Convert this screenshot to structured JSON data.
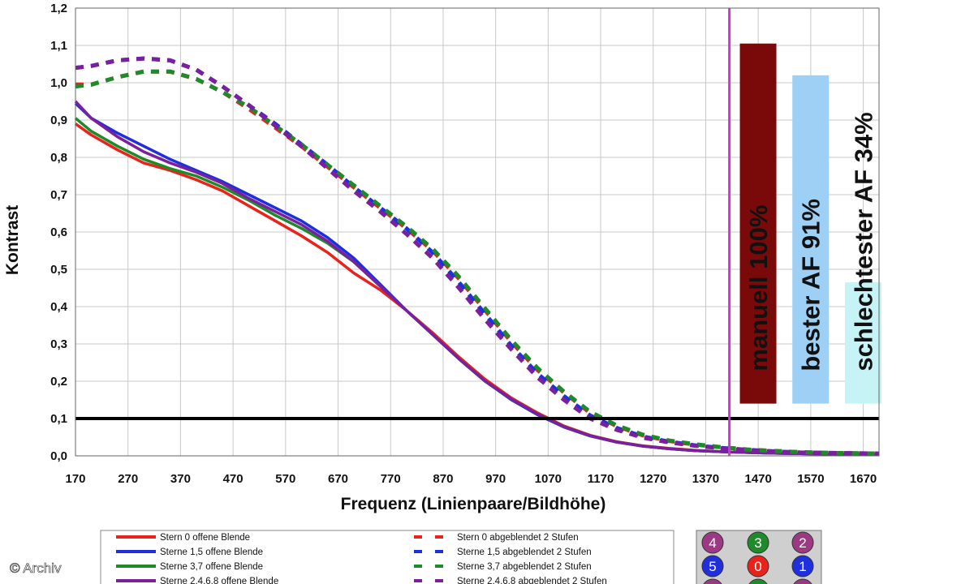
{
  "chart_data": {
    "type": "line",
    "xlabel": "Frequenz (Linienpaare/Bildhöhe)",
    "ylabel": "Kontrast",
    "xlim": [
      170,
      1700
    ],
    "ylim": [
      0,
      1.2
    ],
    "x_ticks": [
      "170",
      "270",
      "370",
      "470",
      "570",
      "670",
      "770",
      "870",
      "970",
      "1070",
      "1170",
      "1270",
      "1370",
      "1470",
      "1570",
      "1670"
    ],
    "y_ticks": [
      "0,0",
      "0,1",
      "0,2",
      "0,3",
      "0,4",
      "0,5",
      "0,6",
      "0,7",
      "0,8",
      "0,9",
      "1,0",
      "1,1",
      "1,2"
    ],
    "grid": true,
    "x": [
      170,
      200,
      250,
      300,
      350,
      400,
      450,
      500,
      550,
      600,
      650,
      700,
      750,
      800,
      850,
      900,
      950,
      1000,
      1050,
      1100,
      1150,
      1200,
      1250,
      1300,
      1350,
      1400,
      1450,
      1500,
      1550,
      1600,
      1650,
      1700
    ],
    "series": [
      {
        "name": "Stern 0 offene Blende",
        "color": "#e8231c",
        "dash": false,
        "values": [
          0.89,
          0.86,
          0.82,
          0.785,
          0.765,
          0.74,
          0.71,
          0.67,
          0.63,
          0.59,
          0.545,
          0.49,
          0.445,
          0.39,
          0.33,
          0.265,
          0.205,
          0.155,
          0.115,
          0.08,
          0.055,
          0.038,
          0.027,
          0.02,
          0.015,
          0.011,
          0.009,
          0.007,
          0.006,
          0.005,
          0.004,
          0.004
        ]
      },
      {
        "name": "Sterne 1,5 offene Blende",
        "color": "#1f2fdc",
        "dash": false,
        "values": [
          0.945,
          0.905,
          0.865,
          0.83,
          0.795,
          0.765,
          0.735,
          0.7,
          0.665,
          0.63,
          0.585,
          0.53,
          0.46,
          0.39,
          0.325,
          0.26,
          0.2,
          0.15,
          0.11,
          0.077,
          0.053,
          0.037,
          0.026,
          0.019,
          0.014,
          0.011,
          0.009,
          0.007,
          0.006,
          0.005,
          0.004,
          0.004
        ]
      },
      {
        "name": "Sterne 3,7 offene Blende",
        "color": "#1e8a2a",
        "dash": false,
        "values": [
          0.905,
          0.87,
          0.83,
          0.795,
          0.77,
          0.75,
          0.72,
          0.685,
          0.645,
          0.61,
          0.57,
          0.52,
          0.455,
          0.39,
          0.325,
          0.26,
          0.2,
          0.152,
          0.112,
          0.078,
          0.054,
          0.037,
          0.026,
          0.019,
          0.014,
          0.011,
          0.009,
          0.007,
          0.006,
          0.005,
          0.004,
          0.004
        ]
      },
      {
        "name": "Sterne 2,4,6,8 offene Blende",
        "color": "#7a1f9e",
        "dash": false,
        "values": [
          0.95,
          0.905,
          0.855,
          0.815,
          0.785,
          0.76,
          0.73,
          0.69,
          0.655,
          0.62,
          0.575,
          0.52,
          0.455,
          0.39,
          0.325,
          0.26,
          0.2,
          0.152,
          0.112,
          0.078,
          0.054,
          0.037,
          0.026,
          0.019,
          0.014,
          0.011,
          0.009,
          0.007,
          0.006,
          0.005,
          0.004,
          0.004
        ]
      },
      {
        "name": "Stern 0 abgeblendet 2 Stufen",
        "color": "#e8231c",
        "dash": true,
        "values": [
          0.995,
          0.995,
          1.015,
          1.03,
          1.03,
          1.01,
          0.975,
          0.93,
          0.88,
          0.83,
          0.775,
          0.72,
          0.665,
          0.61,
          0.55,
          0.475,
          0.39,
          0.305,
          0.23,
          0.17,
          0.115,
          0.08,
          0.055,
          0.04,
          0.03,
          0.023,
          0.017,
          0.013,
          0.01,
          0.008,
          0.007,
          0.006
        ]
      },
      {
        "name": "Sterne 1,5 abgeblendet 2 Stufen",
        "color": "#1f2fdc",
        "dash": true,
        "values": [
          1.04,
          1.045,
          1.06,
          1.065,
          1.06,
          1.035,
          0.99,
          0.94,
          0.89,
          0.835,
          0.78,
          0.72,
          0.665,
          0.61,
          0.545,
          0.465,
          0.38,
          0.295,
          0.22,
          0.16,
          0.108,
          0.075,
          0.052,
          0.038,
          0.028,
          0.021,
          0.016,
          0.012,
          0.009,
          0.008,
          0.007,
          0.006
        ]
      },
      {
        "name": "Sterne 3,7 abgeblendet 2 Stufen",
        "color": "#1e8a2a",
        "dash": true,
        "values": [
          0.99,
          0.995,
          1.015,
          1.03,
          1.03,
          1.01,
          0.975,
          0.935,
          0.885,
          0.835,
          0.78,
          0.725,
          0.67,
          0.615,
          0.555,
          0.48,
          0.395,
          0.31,
          0.235,
          0.172,
          0.118,
          0.082,
          0.057,
          0.041,
          0.031,
          0.023,
          0.017,
          0.013,
          0.01,
          0.008,
          0.007,
          0.006
        ]
      },
      {
        "name": "Sterne 2,4,6,8 abgeblendet 2 Stufen",
        "color": "#7a1f9e",
        "dash": true,
        "values": [
          1.04,
          1.045,
          1.06,
          1.065,
          1.06,
          1.035,
          0.99,
          0.94,
          0.885,
          0.83,
          0.77,
          0.71,
          0.655,
          0.595,
          0.53,
          0.45,
          0.365,
          0.285,
          0.21,
          0.15,
          0.1,
          0.07,
          0.049,
          0.036,
          0.027,
          0.02,
          0.015,
          0.011,
          0.009,
          0.008,
          0.007,
          0.006
        ]
      }
    ],
    "threshold_line": {
      "y": 0.1,
      "color": "#000000"
    },
    "marker_line": {
      "x": 1415,
      "color": "#d633d6"
    },
    "bars": [
      {
        "label": "manuell 100%",
        "top": 1.105,
        "bottom": 0.14,
        "x_start": 1435,
        "x_end": 1525,
        "color": "#7a0a0a"
      },
      {
        "label": "bester AF 91%",
        "top": 1.02,
        "bottom": 0.14,
        "x_start": 1535,
        "x_end": 1625,
        "color": "#9ecff5"
      },
      {
        "label": "schlechtester AF 34%",
        "top": 0.465,
        "bottom": 0.14,
        "x_start": 1635,
        "x_end": 1725,
        "color": "#c6f4f6"
      }
    ]
  },
  "legend": {
    "left": [
      {
        "text": "Stern 0 offene Blende",
        "color": "#e8231c"
      },
      {
        "text": "Sterne 1,5 offene Blende",
        "color": "#1f2fdc"
      },
      {
        "text": "Sterne 3,7 offene Blende",
        "color": "#1e8a2a"
      },
      {
        "text": "Sterne 2,4,6,8 offene Blende",
        "color": "#7a1f9e"
      }
    ],
    "right": [
      {
        "text": "Stern 0 abgeblendet 2 Stufen",
        "color": "#e8231c"
      },
      {
        "text": "Sterne 1,5 abgeblendet 2 Stufen",
        "color": "#1f2fdc"
      },
      {
        "text": "Sterne 3,7 abgeblendet 2 Stufen",
        "color": "#1e8a2a"
      },
      {
        "text": "Sterne 2,4,6,8 abgeblendet 2 Stufen",
        "color": "#7a1f9e"
      }
    ]
  },
  "star_key": [
    {
      "num": "4",
      "color": "#9b3a82"
    },
    {
      "num": "3",
      "color": "#1e8a2a"
    },
    {
      "num": "2",
      "color": "#9b3a82"
    },
    {
      "num": "5",
      "color": "#1f2fdc"
    },
    {
      "num": "0",
      "color": "#e8231c"
    },
    {
      "num": "1",
      "color": "#1f2fdc"
    }
  ],
  "credit": "© Archiv"
}
